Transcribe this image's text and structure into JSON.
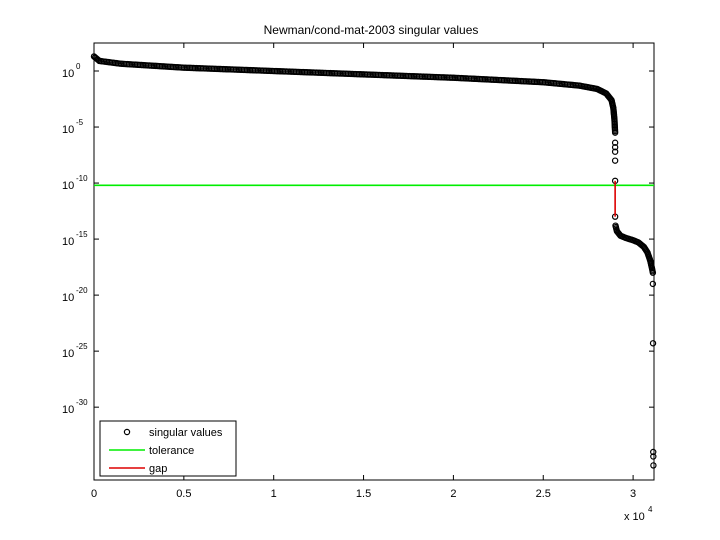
{
  "chart_data": {
    "type": "scatter",
    "title": "Newman/cond-mat-2003 singular values",
    "xlabel": "",
    "ylabel": "",
    "y_scale": "log",
    "xlim": [
      0,
      31163
    ],
    "ylim_log10": [
      -36.5,
      2.5
    ],
    "x_ticks": [
      {
        "value": 0,
        "label": "0"
      },
      {
        "value": 5000,
        "label": "0.5"
      },
      {
        "value": 10000,
        "label": "1"
      },
      {
        "value": 15000,
        "label": "1.5"
      },
      {
        "value": 20000,
        "label": "2"
      },
      {
        "value": 25000,
        "label": "2.5"
      },
      {
        "value": 30000,
        "label": "3"
      }
    ],
    "x_multiplier": {
      "base": "x 10",
      "exponent": "4"
    },
    "y_ticks": [
      {
        "value_log10": 0,
        "base": "10",
        "exponent": "0"
      },
      {
        "value_log10": -5,
        "base": "10",
        "exponent": "-5"
      },
      {
        "value_log10": -10,
        "base": "10",
        "exponent": "-10"
      },
      {
        "value_log10": -15,
        "base": "10",
        "exponent": "-15"
      },
      {
        "value_log10": -20,
        "base": "10",
        "exponent": "-20"
      },
      {
        "value_log10": -25,
        "base": "10",
        "exponent": "-25"
      },
      {
        "value_log10": -30,
        "base": "10",
        "exponent": "-30"
      }
    ],
    "legend_position": "bottom-left",
    "series": [
      {
        "name": "singular values",
        "kind": "markers",
        "color": "#000000",
        "curve_log10": [
          [
            0,
            1.3
          ],
          [
            300,
            0.9
          ],
          [
            1500,
            0.65
          ],
          [
            5000,
            0.3
          ],
          [
            10000,
            0.0
          ],
          [
            15000,
            -0.3
          ],
          [
            20000,
            -0.6
          ],
          [
            25000,
            -1.0
          ],
          [
            27000,
            -1.3
          ],
          [
            28000,
            -1.6
          ],
          [
            28500,
            -2.0
          ],
          [
            28800,
            -2.6
          ],
          [
            28900,
            -3.3
          ],
          [
            28960,
            -4.3
          ],
          [
            29000,
            -5.5
          ]
        ],
        "curve2_log10": [
          [
            29020,
            -13.8
          ],
          [
            29100,
            -14.3
          ],
          [
            29300,
            -14.7
          ],
          [
            29600,
            -14.9
          ],
          [
            30000,
            -15.1
          ],
          [
            30300,
            -15.3
          ],
          [
            30600,
            -15.7
          ],
          [
            30800,
            -16.2
          ],
          [
            30950,
            -16.9
          ],
          [
            31050,
            -17.6
          ],
          [
            31100,
            -18.0
          ]
        ],
        "isolated_points": [
          [
            29000,
            -6.4
          ],
          [
            29000,
            -6.8
          ],
          [
            29000,
            -7.2
          ],
          [
            29000,
            -8.0
          ],
          [
            29000,
            -9.8
          ],
          [
            29000,
            -13.0
          ],
          [
            31100,
            -19.0
          ],
          [
            31110,
            -24.3
          ],
          [
            31120,
            -34.0
          ],
          [
            31125,
            -34.4
          ],
          [
            31130,
            -35.2
          ]
        ]
      },
      {
        "name": "tolerance",
        "kind": "hline",
        "color": "#00ee00",
        "y_log10": -10.2
      },
      {
        "name": "gap",
        "kind": "vline",
        "color": "#dd0000",
        "x": 29000,
        "y_range_log10": [
          -9.8,
          -13.0
        ]
      }
    ]
  }
}
